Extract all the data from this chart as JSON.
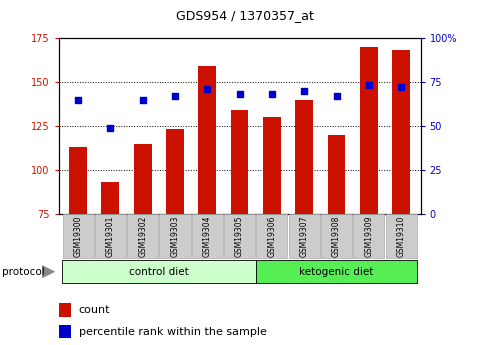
{
  "title": "GDS954 / 1370357_at",
  "samples": [
    "GSM19300",
    "GSM19301",
    "GSM19302",
    "GSM19303",
    "GSM19304",
    "GSM19305",
    "GSM19306",
    "GSM19307",
    "GSM19308",
    "GSM19309",
    "GSM19310"
  ],
  "counts": [
    113,
    93,
    115,
    123,
    159,
    134,
    130,
    140,
    120,
    170,
    168
  ],
  "percentiles": [
    65,
    49,
    65,
    67,
    71,
    68,
    68,
    70,
    67,
    73,
    72
  ],
  "ylim_left": [
    75,
    175
  ],
  "ylim_right": [
    0,
    100
  ],
  "yticks_left": [
    75,
    100,
    125,
    150,
    175
  ],
  "yticks_right": [
    0,
    25,
    50,
    75,
    100
  ],
  "bar_color": "#cc1100",
  "dot_color": "#0000cc",
  "bar_bottom": 75,
  "n_control": 6,
  "control_label": "control diet",
  "ketogenic_label": "ketogenic diet",
  "protocol_label": "protocol",
  "legend_count": "count",
  "legend_percentile": "percentile rank within the sample",
  "tick_color_left": "#cc1100",
  "tick_color_right": "#0000cc",
  "bg_color_control": "#ccffcc",
  "bg_color_ketogenic": "#55ee55",
  "sample_bg_color": "#cccccc",
  "tickfontsize": 7,
  "labelfontsize": 7,
  "title_fontsize": 9
}
